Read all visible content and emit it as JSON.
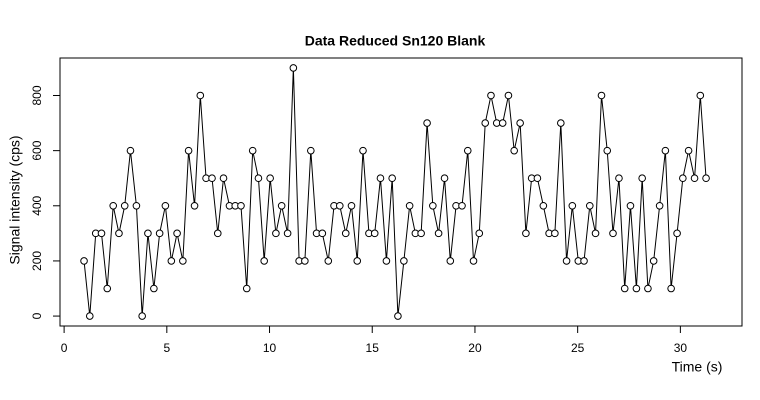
{
  "chart_data": {
    "type": "line",
    "title": "Data Reduced Sn120 Blank",
    "x_label": "Time (s)",
    "y_label": "Signal intensity (cps)",
    "x": [
      0.97,
      1.25,
      1.54,
      1.82,
      2.1,
      2.39,
      2.67,
      2.95,
      3.23,
      3.52,
      3.8,
      4.08,
      4.37,
      4.65,
      4.93,
      5.22,
      5.5,
      5.78,
      6.06,
      6.35,
      6.63,
      6.91,
      7.2,
      7.48,
      7.76,
      8.05,
      8.33,
      8.61,
      8.89,
      9.18,
      9.46,
      9.74,
      10.03,
      10.31,
      10.59,
      10.88,
      11.16,
      11.44,
      11.72,
      12.01,
      12.29,
      12.57,
      12.86,
      13.14,
      13.42,
      13.71,
      13.99,
      14.27,
      14.55,
      14.84,
      15.12,
      15.4,
      15.69,
      15.97,
      16.25,
      16.54,
      16.82,
      17.1,
      17.38,
      17.67,
      17.95,
      18.23,
      18.52,
      18.8,
      19.08,
      19.37,
      19.65,
      19.93,
      20.21,
      20.5,
      20.78,
      21.06,
      21.35,
      21.63,
      21.91,
      22.2,
      22.48,
      22.76,
      23.04,
      23.33,
      23.61,
      23.89,
      24.18,
      24.46,
      24.74,
      25.03,
      25.31,
      25.59,
      25.87,
      26.16,
      26.44,
      26.72,
      27.01,
      27.29,
      27.57,
      27.86,
      28.14,
      28.42,
      28.7,
      28.99,
      29.27,
      29.55,
      29.84,
      30.12,
      30.4,
      30.69,
      30.97,
      31.25
    ],
    "values": [
      200,
      0,
      300,
      300,
      100,
      400,
      300,
      400,
      600,
      400,
      0,
      300,
      100,
      300,
      400,
      200,
      300,
      200,
      600,
      400,
      800,
      500,
      500,
      300,
      500,
      400,
      400,
      400,
      100,
      600,
      500,
      200,
      500,
      300,
      400,
      300,
      900,
      200,
      200,
      600,
      300,
      300,
      200,
      400,
      400,
      300,
      400,
      200,
      600,
      300,
      300,
      500,
      200,
      500,
      0,
      200,
      400,
      300,
      300,
      700,
      400,
      300,
      500,
      200,
      400,
      400,
      600,
      200,
      300,
      700,
      800,
      700,
      700,
      800,
      600,
      700,
      300,
      500,
      500,
      400,
      300,
      300,
      700,
      200,
      400,
      200,
      200,
      400,
      300,
      800,
      600,
      300,
      500,
      100,
      400,
      100,
      500,
      100,
      200,
      400,
      600,
      100,
      300,
      500,
      600,
      500,
      800,
      500
    ],
    "color": "#000000",
    "xlim": [
      -0.2,
      33
    ],
    "xticks": [
      0,
      5,
      10,
      15,
      20,
      25,
      30
    ],
    "ylim": [
      -36,
      936
    ],
    "yticks": [
      0,
      200,
      400,
      600,
      800
    ]
  }
}
